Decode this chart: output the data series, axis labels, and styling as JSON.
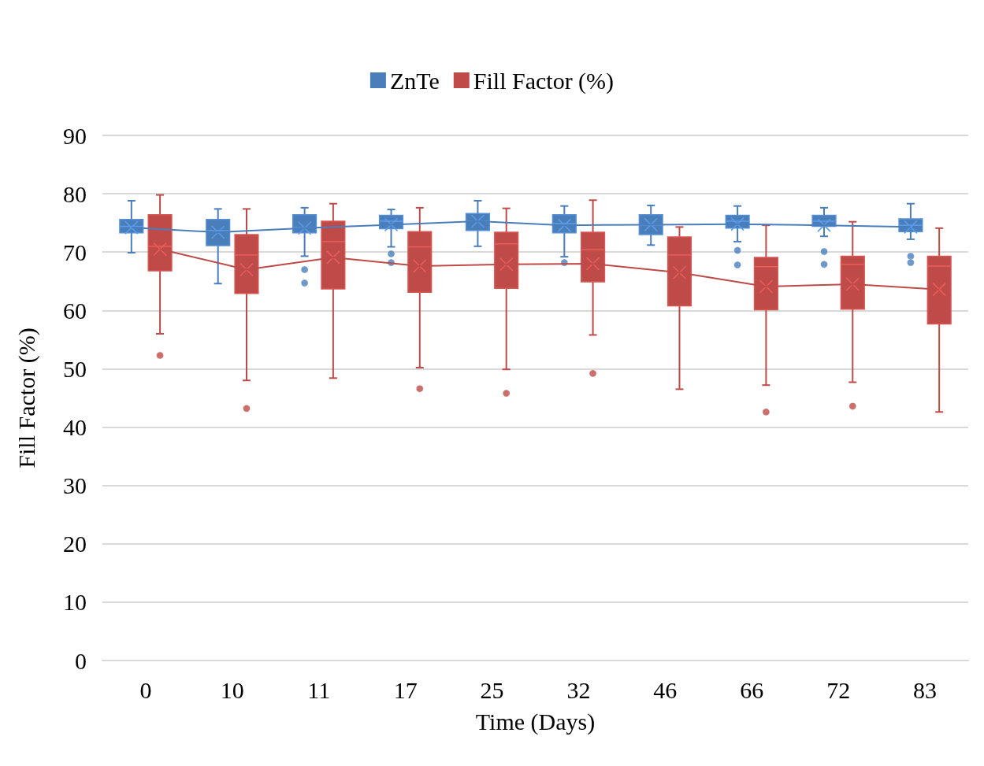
{
  "chart_data": {
    "type": "box",
    "xlabel": "Time (Days)",
    "ylabel": "Fill Factor (%)",
    "legend": "top",
    "grid": "y",
    "categories": [
      "0",
      "10",
      "11",
      "17",
      "25",
      "32",
      "46",
      "66",
      "72",
      "83"
    ],
    "ylim": [
      0,
      90
    ],
    "yticks": [
      0,
      10,
      20,
      30,
      40,
      50,
      60,
      70,
      80,
      90
    ],
    "series": [
      {
        "name": "ZnTe",
        "color": "#4a7ebb",
        "boxes": [
          {
            "low": 69.9,
            "q1": 73.3,
            "median": 74.4,
            "q3": 75.6,
            "high": 78.8,
            "mean": 74.2
          },
          {
            "low": 64.6,
            "q1": 71.1,
            "median": 73.7,
            "q3": 75.6,
            "high": 77.4,
            "mean": 73.4
          },
          {
            "low": 69.3,
            "q1": 73.3,
            "median": 74.2,
            "q3": 76.4,
            "high": 77.6,
            "mean": 74.1,
            "outliers": [
              67.0,
              64.7
            ]
          },
          {
            "low": 70.9,
            "q1": 74.0,
            "median": 75.3,
            "q3": 76.3,
            "high": 77.3,
            "mean": 74.7,
            "outliers": [
              69.7,
              68.2
            ]
          },
          {
            "low": 71.0,
            "q1": 73.7,
            "median": 75.3,
            "q3": 76.6,
            "high": 78.8,
            "mean": 75.3
          },
          {
            "low": 69.2,
            "q1": 73.3,
            "median": 74.9,
            "q3": 76.4,
            "high": 77.9,
            "mean": 74.6,
            "outliers": [
              68.2
            ]
          },
          {
            "low": 71.2,
            "q1": 73.0,
            "median": 74.6,
            "q3": 76.4,
            "high": 78.0,
            "mean": 74.7
          },
          {
            "low": 71.8,
            "q1": 74.1,
            "median": 75.3,
            "q3": 76.3,
            "high": 77.9,
            "mean": 74.8,
            "outliers": [
              70.3,
              67.8
            ]
          },
          {
            "low": 72.7,
            "q1": 74.4,
            "median": 75.3,
            "q3": 76.3,
            "high": 77.6,
            "mean": 74.6,
            "outliers": [
              70.1,
              67.9
            ]
          },
          {
            "low": 72.2,
            "q1": 73.5,
            "median": 74.6,
            "q3": 75.7,
            "high": 78.3,
            "mean": 74.3,
            "outliers": [
              69.3,
              68.2
            ]
          }
        ]
      },
      {
        "name": "Fill Factor (%)",
        "color": "#be4b48",
        "boxes": [
          {
            "low": 56.0,
            "q1": 66.8,
            "median": 71.0,
            "q3": 76.4,
            "high": 79.8,
            "mean": 70.5,
            "outliers": [
              52.3
            ]
          },
          {
            "low": 48.0,
            "q1": 62.9,
            "median": 69.5,
            "q3": 73.0,
            "high": 77.4,
            "mean": 67.0,
            "outliers": [
              43.2
            ]
          },
          {
            "low": 48.4,
            "q1": 63.7,
            "median": 71.8,
            "q3": 75.3,
            "high": 78.3,
            "mean": 69.1
          },
          {
            "low": 50.2,
            "q1": 63.1,
            "median": 70.9,
            "q3": 73.5,
            "high": 77.6,
            "mean": 67.6,
            "outliers": [
              46.6
            ]
          },
          {
            "low": 49.9,
            "q1": 63.8,
            "median": 71.4,
            "q3": 73.4,
            "high": 77.5,
            "mean": 67.9,
            "outliers": [
              45.8
            ]
          },
          {
            "low": 55.8,
            "q1": 64.9,
            "median": 70.4,
            "q3": 73.4,
            "high": 78.9,
            "mean": 68.0,
            "outliers": [
              49.2
            ]
          },
          {
            "low": 46.5,
            "q1": 60.8,
            "median": 69.5,
            "q3": 72.6,
            "high": 74.3,
            "mean": 66.5
          },
          {
            "low": 47.2,
            "q1": 60.1,
            "median": 67.5,
            "q3": 69.1,
            "high": 74.6,
            "mean": 64.1,
            "outliers": [
              42.6
            ]
          },
          {
            "low": 47.7,
            "q1": 60.2,
            "median": 67.9,
            "q3": 69.3,
            "high": 75.2,
            "mean": 64.5,
            "outliers": [
              43.6
            ]
          },
          {
            "low": 42.6,
            "q1": 57.7,
            "median": 67.6,
            "q3": 69.3,
            "high": 74.1,
            "mean": 63.6
          }
        ]
      },
      {
        "type": "line",
        "color": "#4a7ebb",
        "values": [
          74.2,
          73.4,
          74.1,
          74.7,
          75.3,
          74.6,
          74.7,
          74.8,
          74.6,
          74.3
        ]
      },
      {
        "type": "line",
        "color": "#be4b48",
        "values": [
          70.5,
          67.0,
          69.1,
          67.6,
          67.9,
          68.0,
          66.5,
          64.1,
          64.5,
          63.6
        ]
      }
    ]
  }
}
